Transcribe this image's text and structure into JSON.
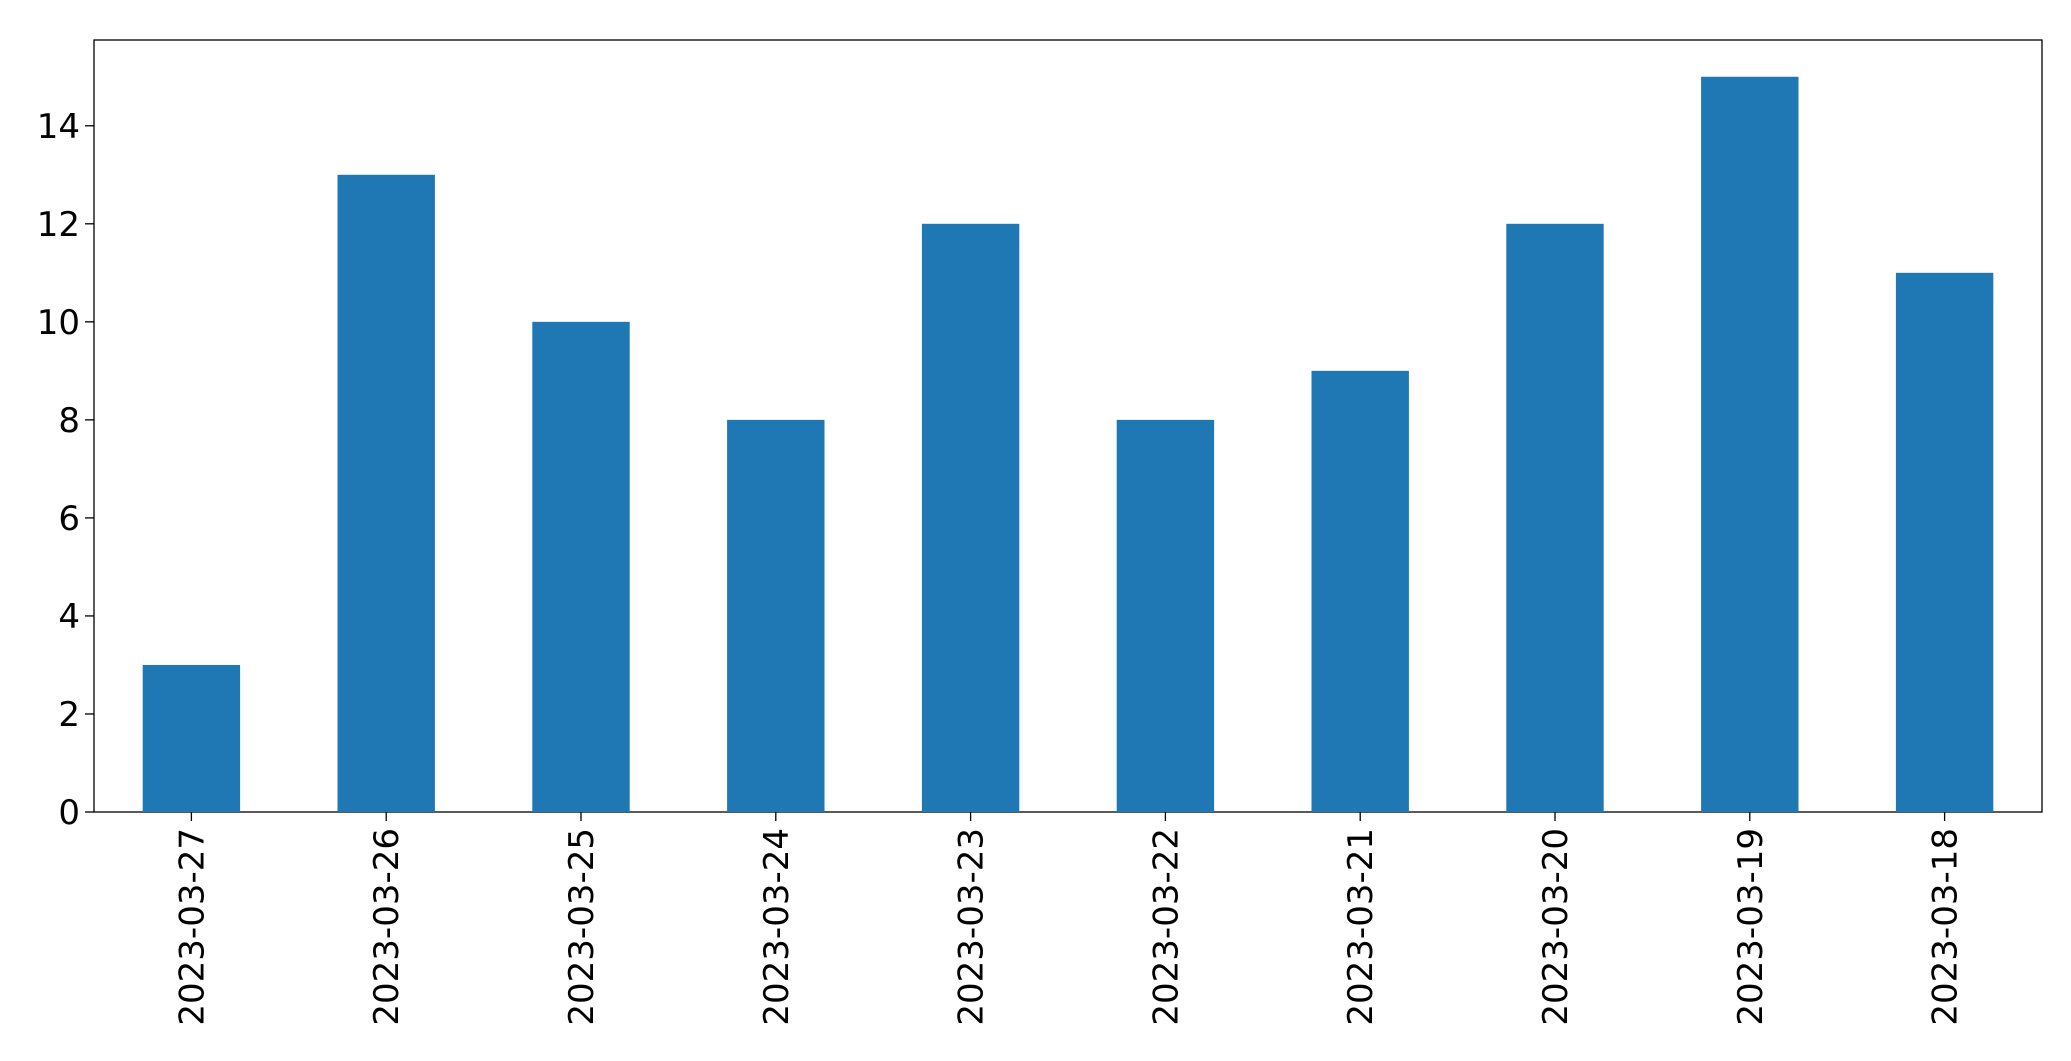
{
  "chart_data": {
    "type": "bar",
    "categories": [
      "2023-03-27",
      "2023-03-26",
      "2023-03-25",
      "2023-03-24",
      "2023-03-23",
      "2023-03-22",
      "2023-03-21",
      "2023-03-20",
      "2023-03-19",
      "2023-03-18"
    ],
    "values": [
      3,
      13,
      10,
      8,
      12,
      8,
      9,
      12,
      15,
      11
    ],
    "color": "#1f77b4",
    "ylim": [
      0,
      15.75
    ],
    "yticks": [
      0,
      2,
      4,
      6,
      8,
      10,
      12,
      14
    ],
    "grid": false
  }
}
